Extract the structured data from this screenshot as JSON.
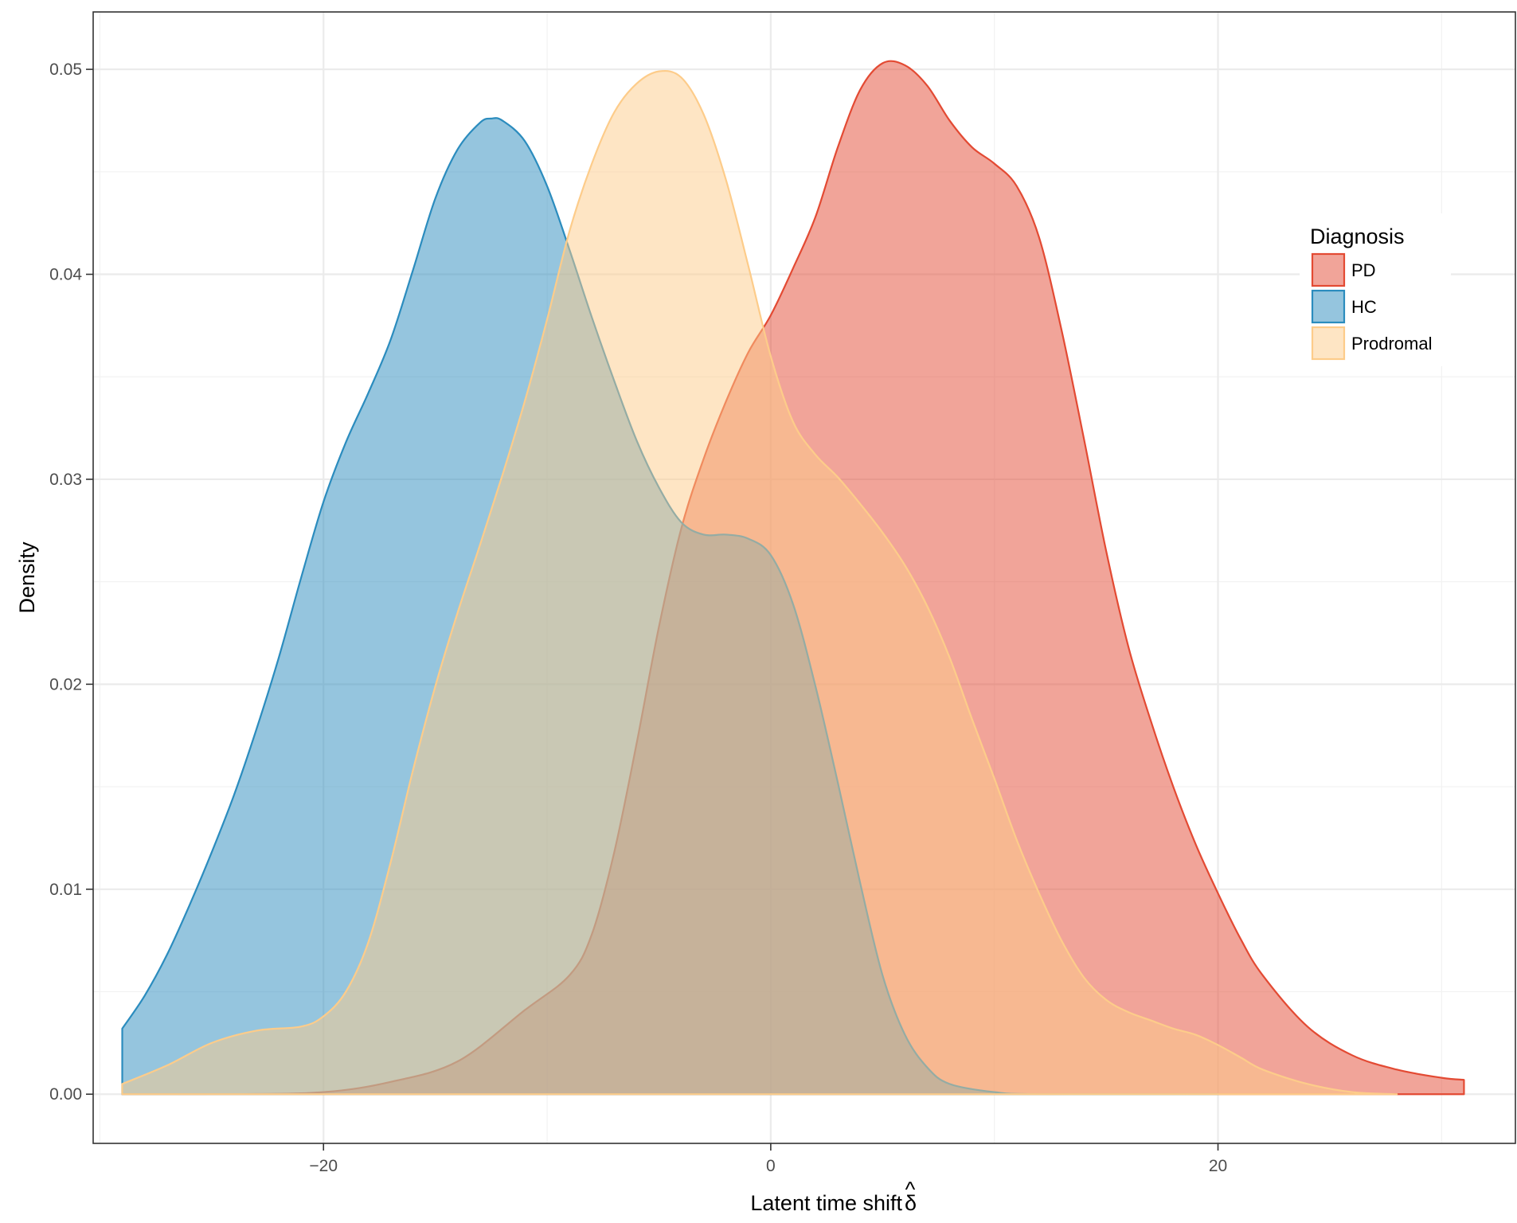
{
  "chart_data": {
    "type": "area",
    "subtype": "density",
    "xlabel": "Latent time shift",
    "xlabel_symbol": "δ",
    "xlabel_symbol_accent": "^",
    "ylabel": "Density",
    "xlim": [
      -30.3,
      33.3
    ],
    "ylim": [
      -0.0024,
      0.0528
    ],
    "x_ticks": [
      -20,
      0,
      20
    ],
    "x_tick_labels": [
      "−20",
      "0",
      "20"
    ],
    "y_ticks": [
      0.0,
      0.01,
      0.02,
      0.03,
      0.04,
      0.05
    ],
    "y_tick_labels": [
      "0.00",
      "0.01",
      "0.02",
      "0.03",
      "0.04",
      "0.05"
    ],
    "grid": true,
    "legend": {
      "title": "Diagnosis",
      "position": "right",
      "entries": [
        "PD",
        "HC",
        "Prodromal"
      ]
    },
    "series": [
      {
        "name": "PD",
        "fill": "#e34a33",
        "fill_opacity": 0.5,
        "stroke": "#e34a33",
        "points": [
          [
            -29.0,
            0.0
          ],
          [
            -24.0,
            0.0
          ],
          [
            -20.0,
            0.0001
          ],
          [
            -17.0,
            0.0006
          ],
          [
            -14.0,
            0.0016
          ],
          [
            -11.0,
            0.0041
          ],
          [
            -9.0,
            0.0058
          ],
          [
            -8.0,
            0.0078
          ],
          [
            -7.0,
            0.0118
          ],
          [
            -6.0,
            0.0171
          ],
          [
            -5.0,
            0.0228
          ],
          [
            -4.0,
            0.0276
          ],
          [
            -3.0,
            0.031
          ],
          [
            -2.0,
            0.0338
          ],
          [
            -1.0,
            0.0362
          ],
          [
            0.0,
            0.038
          ],
          [
            1.0,
            0.0403
          ],
          [
            2.0,
            0.0428
          ],
          [
            3.0,
            0.0462
          ],
          [
            4.0,
            0.049
          ],
          [
            5.0,
            0.0503
          ],
          [
            6.0,
            0.0502
          ],
          [
            7.0,
            0.0492
          ],
          [
            8.0,
            0.0475
          ],
          [
            9.0,
            0.0462
          ],
          [
            10.0,
            0.0454
          ],
          [
            11.0,
            0.0443
          ],
          [
            12.0,
            0.0418
          ],
          [
            13.0,
            0.0373
          ],
          [
            14.0,
            0.032
          ],
          [
            15.0,
            0.0265
          ],
          [
            16.0,
            0.0218
          ],
          [
            17.0,
            0.0182
          ],
          [
            18.0,
            0.015
          ],
          [
            19.0,
            0.0122
          ],
          [
            20.0,
            0.0098
          ],
          [
            21.0,
            0.0076
          ],
          [
            22.0,
            0.0058
          ],
          [
            24.0,
            0.0033
          ],
          [
            26.0,
            0.0019
          ],
          [
            28.0,
            0.0012
          ],
          [
            30.0,
            0.0008
          ],
          [
            31.0,
            0.0007
          ]
        ]
      },
      {
        "name": "HC",
        "fill": "#2b8cbe",
        "fill_opacity": 0.5,
        "stroke": "#2b8cbe",
        "points": [
          [
            -29.0,
            0.0032
          ],
          [
            -28.0,
            0.0048
          ],
          [
            -27.0,
            0.0068
          ],
          [
            -26.0,
            0.0092
          ],
          [
            -25.0,
            0.0118
          ],
          [
            -24.0,
            0.0146
          ],
          [
            -23.0,
            0.0178
          ],
          [
            -22.0,
            0.0213
          ],
          [
            -21.0,
            0.0252
          ],
          [
            -20.0,
            0.0289
          ],
          [
            -19.0,
            0.0318
          ],
          [
            -18.0,
            0.0342
          ],
          [
            -17.0,
            0.0368
          ],
          [
            -16.0,
            0.0402
          ],
          [
            -15.0,
            0.0437
          ],
          [
            -14.0,
            0.0461
          ],
          [
            -13.0,
            0.0474
          ],
          [
            -12.5,
            0.0476
          ],
          [
            -12.0,
            0.0475
          ],
          [
            -11.0,
            0.0465
          ],
          [
            -10.0,
            0.0443
          ],
          [
            -9.0,
            0.0412
          ],
          [
            -8.0,
            0.0379
          ],
          [
            -7.0,
            0.0348
          ],
          [
            -6.0,
            0.0319
          ],
          [
            -5.0,
            0.0296
          ],
          [
            -4.0,
            0.0279
          ],
          [
            -3.0,
            0.0273
          ],
          [
            -2.0,
            0.0273
          ],
          [
            -1.0,
            0.0271
          ],
          [
            0.0,
            0.0263
          ],
          [
            1.0,
            0.0239
          ],
          [
            2.0,
            0.0199
          ],
          [
            3.0,
            0.0152
          ],
          [
            4.0,
            0.0103
          ],
          [
            5.0,
            0.0058
          ],
          [
            6.0,
            0.0029
          ],
          [
            7.0,
            0.0013
          ],
          [
            8.0,
            0.0005
          ],
          [
            10.0,
            0.0001
          ],
          [
            12.0,
            0.0
          ],
          [
            20.0,
            0.0
          ]
        ]
      },
      {
        "name": "Prodromal",
        "fill": "#fdcc8a",
        "fill_opacity": 0.5,
        "stroke": "#fdcc8a",
        "points": [
          [
            -29.0,
            0.0005
          ],
          [
            -27.0,
            0.0014
          ],
          [
            -25.0,
            0.0025
          ],
          [
            -23.0,
            0.0031
          ],
          [
            -21.0,
            0.0033
          ],
          [
            -20.0,
            0.0038
          ],
          [
            -19.0,
            0.005
          ],
          [
            -18.0,
            0.0074
          ],
          [
            -17.0,
            0.0113
          ],
          [
            -16.0,
            0.0158
          ],
          [
            -15.0,
            0.0199
          ],
          [
            -14.0,
            0.0235
          ],
          [
            -13.0,
            0.0268
          ],
          [
            -12.0,
            0.0302
          ],
          [
            -11.0,
            0.0338
          ],
          [
            -10.0,
            0.0378
          ],
          [
            -9.0,
            0.0421
          ],
          [
            -8.0,
            0.0454
          ],
          [
            -7.0,
            0.0479
          ],
          [
            -6.0,
            0.0493
          ],
          [
            -5.0,
            0.0499
          ],
          [
            -4.0,
            0.0496
          ],
          [
            -3.0,
            0.0478
          ],
          [
            -2.0,
            0.0446
          ],
          [
            -1.0,
            0.0404
          ],
          [
            0.0,
            0.036
          ],
          [
            1.0,
            0.0328
          ],
          [
            2.0,
            0.0312
          ],
          [
            3.0,
            0.0301
          ],
          [
            4.0,
            0.0288
          ],
          [
            5.0,
            0.0274
          ],
          [
            6.0,
            0.0258
          ],
          [
            7.0,
            0.0238
          ],
          [
            8.0,
            0.0213
          ],
          [
            9.0,
            0.0183
          ],
          [
            10.0,
            0.0154
          ],
          [
            11.0,
            0.0124
          ],
          [
            12.0,
            0.0098
          ],
          [
            13.0,
            0.0075
          ],
          [
            14.0,
            0.0057
          ],
          [
            15.0,
            0.0046
          ],
          [
            16.0,
            0.004
          ],
          [
            17.0,
            0.0036
          ],
          [
            18.0,
            0.0032
          ],
          [
            19.0,
            0.0029
          ],
          [
            20.0,
            0.0024
          ],
          [
            21.0,
            0.0018
          ],
          [
            22.0,
            0.0012
          ],
          [
            24.0,
            0.0005
          ],
          [
            26.0,
            0.0001
          ],
          [
            28.0,
            0.0
          ]
        ]
      }
    ]
  }
}
